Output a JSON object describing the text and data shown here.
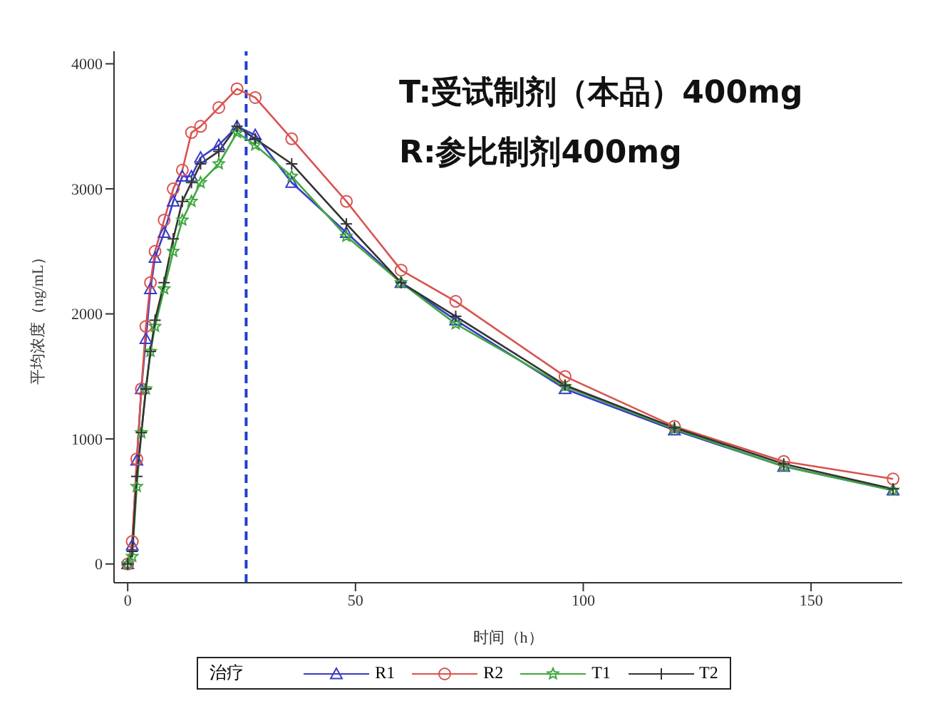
{
  "chart_data": {
    "type": "line",
    "xlabel": "时间（h）",
    "ylabel": "平均浓度（ng/mL）",
    "legend_title": "治疗",
    "annotations": [
      "T:受试制剂（本品）400mg",
      "R:参比制剂400mg"
    ],
    "x": [
      0,
      1,
      2,
      3,
      4,
      5,
      6,
      8,
      10,
      12,
      14,
      16,
      20,
      24,
      28,
      36,
      48,
      60,
      72,
      96,
      120,
      144,
      168
    ],
    "series": [
      {
        "name": "R1",
        "color": "#3b3bc8",
        "marker": "triangle",
        "values": [
          0,
          150,
          830,
          1400,
          1800,
          2200,
          2450,
          2650,
          2900,
          3100,
          3100,
          3250,
          3350,
          3500,
          3430,
          3050,
          2650,
          2250,
          1950,
          1400,
          1070,
          780,
          590
        ]
      },
      {
        "name": "R2",
        "color": "#d9534f",
        "marker": "circle",
        "values": [
          0,
          180,
          840,
          1400,
          1900,
          2250,
          2500,
          2750,
          3000,
          3150,
          3450,
          3500,
          3650,
          3800,
          3730,
          3400,
          2900,
          2350,
          2100,
          1500,
          1100,
          820,
          680
        ]
      },
      {
        "name": "T1",
        "color": "#3fa83f",
        "marker": "star",
        "values": [
          0,
          60,
          620,
          1050,
          1400,
          1700,
          1900,
          2200,
          2500,
          2750,
          2900,
          3050,
          3200,
          3450,
          3350,
          3100,
          2620,
          2250,
          1920,
          1420,
          1080,
          780,
          590
        ]
      },
      {
        "name": "T2",
        "color": "#333333",
        "marker": "cross",
        "values": [
          0,
          100,
          700,
          1050,
          1400,
          1700,
          1950,
          2250,
          2600,
          2900,
          3050,
          3200,
          3300,
          3500,
          3400,
          3200,
          2720,
          2250,
          1980,
          1430,
          1090,
          800,
          600
        ]
      }
    ],
    "xlim": [
      -3,
      170
    ],
    "ylim": [
      -150,
      4100
    ],
    "xticks": [
      0,
      50,
      100,
      150
    ],
    "yticks": [
      0,
      1000,
      2000,
      3000,
      4000
    ],
    "ref_lines": [
      {
        "axis": "x",
        "value": 26,
        "color": "#1f3fd0",
        "line_style": "dashed"
      }
    ],
    "grid": false,
    "legend": "bottom",
    "line_style": "solid"
  }
}
